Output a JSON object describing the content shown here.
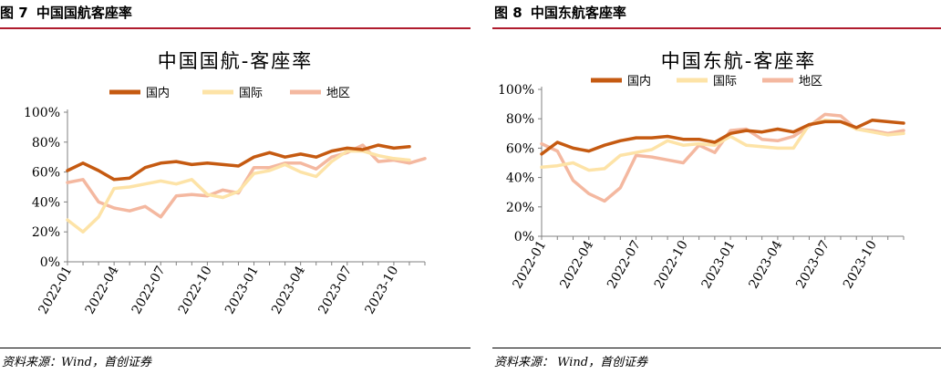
{
  "figures": [
    {
      "caption_num": "图 7",
      "caption_title": "中国国航客座率",
      "source": "资料来源：Wind，首创证券"
    },
    {
      "caption_num": "图 8",
      "caption_title": "中国东航客座率",
      "source": "资料来源：  Wind，首创证券"
    }
  ],
  "chart_data": [
    {
      "type": "line",
      "title": "中国国航-客座率",
      "xlabel": "",
      "ylabel": "",
      "x": [
        "2022-01",
        "2022-02",
        "2022-03",
        "2022-04",
        "2022-05",
        "2022-06",
        "2022-07",
        "2022-08",
        "2022-09",
        "2022-10",
        "2022-11",
        "2022-12",
        "2023-01",
        "2023-02",
        "2023-03",
        "2023-04",
        "2023-05",
        "2023-06",
        "2023-07",
        "2023-08",
        "2023-09",
        "2023-10",
        "2023-11",
        "2023-12"
      ],
      "x_tick_labels": [
        "2022-01",
        "2022-04",
        "2022-07",
        "2022-10",
        "2023-01",
        "2023-04",
        "2023-07",
        "2023-10"
      ],
      "x_tick_indices": [
        0,
        3,
        6,
        9,
        12,
        15,
        18,
        21
      ],
      "ylim": [
        0,
        100
      ],
      "y_ticks": [
        0,
        20,
        40,
        60,
        80,
        100
      ],
      "y_tick_labels": [
        "0%",
        "20%",
        "40%",
        "60%",
        "80%",
        "100%"
      ],
      "legend_position": "top-center",
      "grid": false,
      "series": [
        {
          "name": "国内",
          "color": "#c55a11",
          "values": [
            61,
            66,
            61,
            55,
            56,
            63,
            66,
            67,
            65,
            66,
            65,
            64,
            70,
            73,
            70,
            72,
            70,
            74,
            76,
            75,
            78,
            76,
            77,
            null
          ]
        },
        {
          "name": "国际",
          "color": "#fde3a7",
          "values": [
            28,
            20,
            30,
            49,
            50,
            52,
            54,
            52,
            55,
            45,
            43,
            47,
            59,
            61,
            65,
            60,
            57,
            67,
            74,
            74,
            71,
            69,
            68,
            null
          ]
        },
        {
          "name": "地区",
          "color": "#f4b8a0",
          "values": [
            53,
            55,
            40,
            36,
            34,
            37,
            30,
            44,
            45,
            44,
            48,
            46,
            63,
            63,
            66,
            66,
            62,
            70,
            73,
            78,
            67,
            68,
            66,
            69
          ]
        }
      ]
    },
    {
      "type": "line",
      "title": "中国东航-客座率",
      "xlabel": "",
      "ylabel": "",
      "x": [
        "2022-01",
        "2022-02",
        "2022-03",
        "2022-04",
        "2022-05",
        "2022-06",
        "2022-07",
        "2022-08",
        "2022-09",
        "2022-10",
        "2022-11",
        "2022-12",
        "2023-01",
        "2023-02",
        "2023-03",
        "2023-04",
        "2023-05",
        "2023-06",
        "2023-07",
        "2023-08",
        "2023-09",
        "2023-10",
        "2023-11",
        "2023-12"
      ],
      "x_tick_labels": [
        "2022-01",
        "2022-04",
        "2022-07",
        "2022-10",
        "2023-01",
        "2023-04",
        "2023-07",
        "2023-10"
      ],
      "x_tick_indices": [
        0,
        3,
        6,
        9,
        12,
        15,
        18,
        21
      ],
      "ylim": [
        0,
        100
      ],
      "y_ticks": [
        0,
        20,
        40,
        60,
        80,
        100
      ],
      "y_tick_labels": [
        "0%",
        "20%",
        "40%",
        "60%",
        "80%",
        "100%"
      ],
      "legend_position": "top-center",
      "grid": false,
      "series": [
        {
          "name": "国内",
          "color": "#c55a11",
          "values": [
            56,
            64,
            60,
            58,
            62,
            65,
            67,
            67,
            68,
            66,
            66,
            64,
            70,
            72,
            71,
            73,
            71,
            76,
            78,
            78,
            74,
            79,
            78,
            77
          ]
        },
        {
          "name": "国际",
          "color": "#fde3a7",
          "values": [
            47,
            48,
            50,
            45,
            46,
            55,
            57,
            59,
            65,
            62,
            63,
            62,
            68,
            62,
            61,
            60,
            60,
            76,
            79,
            78,
            73,
            71,
            69,
            70
          ]
        },
        {
          "name": "地区",
          "color": "#f4b8a0",
          "values": [
            63,
            58,
            38,
            29,
            24,
            33,
            55,
            54,
            52,
            50,
            62,
            57,
            72,
            73,
            66,
            65,
            68,
            75,
            83,
            82,
            73,
            72,
            70,
            72
          ]
        }
      ]
    }
  ]
}
